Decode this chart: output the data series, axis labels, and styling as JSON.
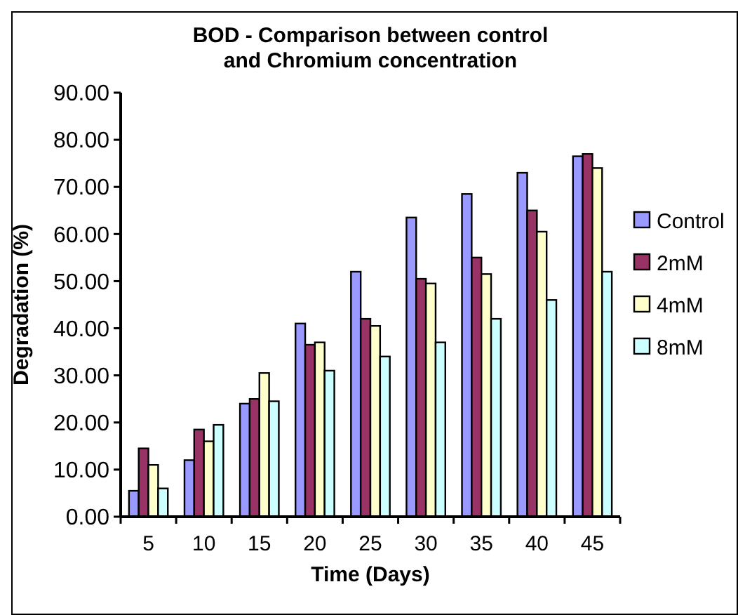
{
  "chart_data": {
    "type": "bar",
    "title": "BOD - Comparison between control and Chromium concentration",
    "xlabel": "Time (Days)",
    "ylabel": "Degradation (%)",
    "categories": [
      "5",
      "10",
      "15",
      "20",
      "25",
      "30",
      "35",
      "40",
      "45"
    ],
    "series": [
      {
        "name": "Control",
        "color": "#9999ff",
        "values": [
          5.5,
          12,
          24,
          41,
          52,
          63.5,
          68.5,
          73,
          76.5
        ]
      },
      {
        "name": "2mM",
        "color": "#993366",
        "values": [
          14.5,
          18.5,
          25,
          36.5,
          42,
          50.5,
          55,
          65,
          77
        ]
      },
      {
        "name": "4mM",
        "color": "#ffffcc",
        "values": [
          11,
          16,
          30.5,
          37,
          40.5,
          49.5,
          51.5,
          60.5,
          74
        ]
      },
      {
        "name": "8mM",
        "color": "#ccffff",
        "values": [
          6,
          19.5,
          24.5,
          31,
          34,
          37,
          42,
          46,
          52
        ]
      }
    ],
    "ylim": [
      0,
      90
    ],
    "yticks": [
      {
        "value": 0,
        "label": "0.00"
      },
      {
        "value": 10,
        "label": "10.00"
      },
      {
        "value": 20,
        "label": "20.00"
      },
      {
        "value": 30,
        "label": "30.00"
      },
      {
        "value": 40,
        "label": "40.00"
      },
      {
        "value": 50,
        "label": "50.00"
      },
      {
        "value": 60,
        "label": "60.00"
      },
      {
        "value": 70,
        "label": "70.00"
      },
      {
        "value": 80,
        "label": "80.00"
      },
      {
        "value": 90,
        "label": "90.00"
      }
    ],
    "grid": false,
    "legend": "right"
  }
}
